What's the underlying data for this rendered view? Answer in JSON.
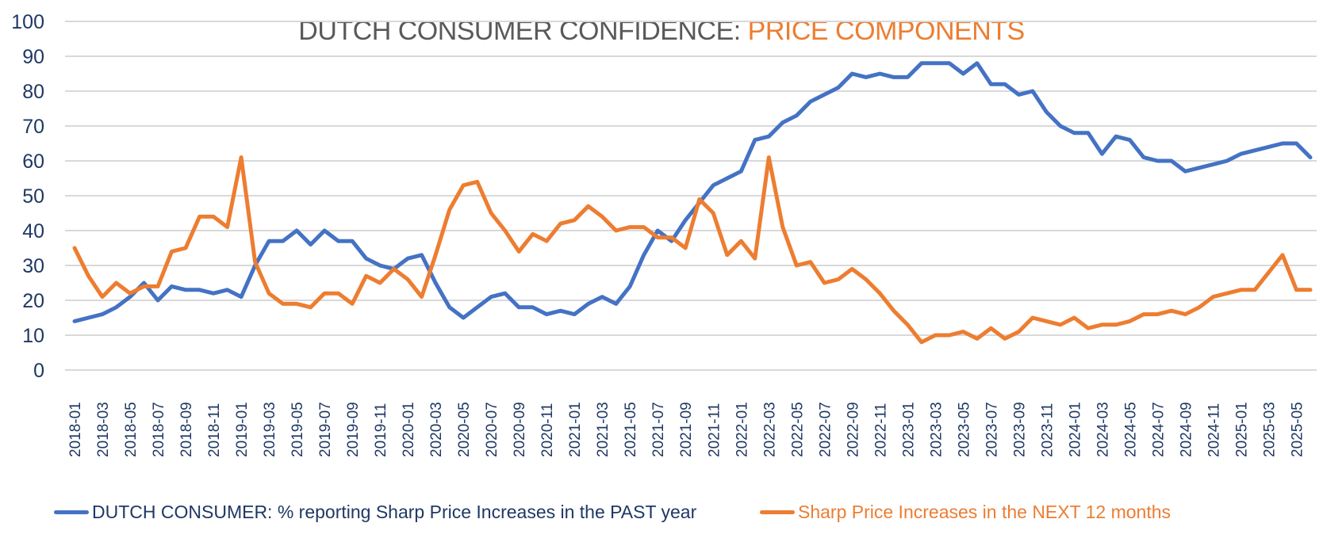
{
  "chart_data": {
    "type": "line",
    "title": {
      "part1": "DUTCH CONSUMER CONFIDENCE: ",
      "part2": "PRICE COMPONENTS"
    },
    "xlabel": "",
    "ylabel": "",
    "ylim": [
      0,
      100
    ],
    "yticks": [
      0,
      10,
      20,
      30,
      40,
      50,
      60,
      70,
      80,
      90,
      100
    ],
    "grid": true,
    "legend_position": "bottom",
    "x_start": "2018-01",
    "x_tick_labels": [
      "2018-01",
      "2018-03",
      "2018-05",
      "2018-07",
      "2018-09",
      "2018-11",
      "2019-01",
      "2019-03",
      "2019-05",
      "2019-07",
      "2019-09",
      "2019-11",
      "2020-01",
      "2020-03",
      "2020-05",
      "2020-07",
      "2020-09",
      "2020-11",
      "2021-01",
      "2021-03",
      "2021-05",
      "2021-07",
      "2021-09",
      "2021-11",
      "2022-01",
      "2022-03",
      "2022-05",
      "2022-07",
      "2022-09",
      "2022-11",
      "2023-01",
      "2023-03",
      "2023-05",
      "2023-07",
      "2023-09",
      "2023-11",
      "2024-01",
      "2024-03",
      "2024-05",
      "2024-07",
      "2024-09",
      "2024-11",
      "2025-01",
      "2025-03",
      "2025-05"
    ],
    "series": [
      {
        "name": "DUTCH CONSUMER: % reporting Sharp Price Increases in the PAST year",
        "color": "#4472C4",
        "values": [
          14,
          15,
          16,
          18,
          21,
          25,
          20,
          24,
          23,
          23,
          22,
          23,
          21,
          30,
          37,
          37,
          40,
          36,
          40,
          37,
          37,
          32,
          30,
          29,
          32,
          33,
          25,
          18,
          15,
          18,
          21,
          22,
          18,
          18,
          16,
          17,
          16,
          19,
          21,
          19,
          24,
          33,
          40,
          37,
          43,
          48,
          53,
          55,
          57,
          66,
          67,
          71,
          73,
          77,
          79,
          81,
          85,
          84,
          85,
          84,
          84,
          88,
          88,
          88,
          85,
          88,
          82,
          82,
          79,
          80,
          74,
          70,
          68,
          68,
          62,
          67,
          66,
          61,
          60,
          60,
          57,
          58,
          59,
          60,
          62,
          63,
          64,
          65,
          65,
          61
        ]
      },
      {
        "name": "Sharp Price Increases in the NEXT 12 months",
        "color": "#ED7D31",
        "values": [
          35,
          27,
          21,
          25,
          22,
          24,
          24,
          34,
          35,
          44,
          44,
          41,
          61,
          31,
          22,
          19,
          19,
          18,
          22,
          22,
          19,
          27,
          25,
          29,
          26,
          21,
          33,
          46,
          53,
          54,
          45,
          40,
          34,
          39,
          37,
          42,
          43,
          47,
          44,
          40,
          41,
          41,
          38,
          38,
          35,
          49,
          45,
          33,
          37,
          32,
          61,
          41,
          30,
          31,
          25,
          26,
          29,
          26,
          22,
          17,
          13,
          8,
          10,
          10,
          11,
          9,
          12,
          9,
          11,
          15,
          14,
          13,
          15,
          12,
          13,
          13,
          14,
          16,
          16,
          17,
          16,
          18,
          21,
          22,
          23,
          23,
          28,
          33,
          23,
          23
        ]
      }
    ]
  }
}
